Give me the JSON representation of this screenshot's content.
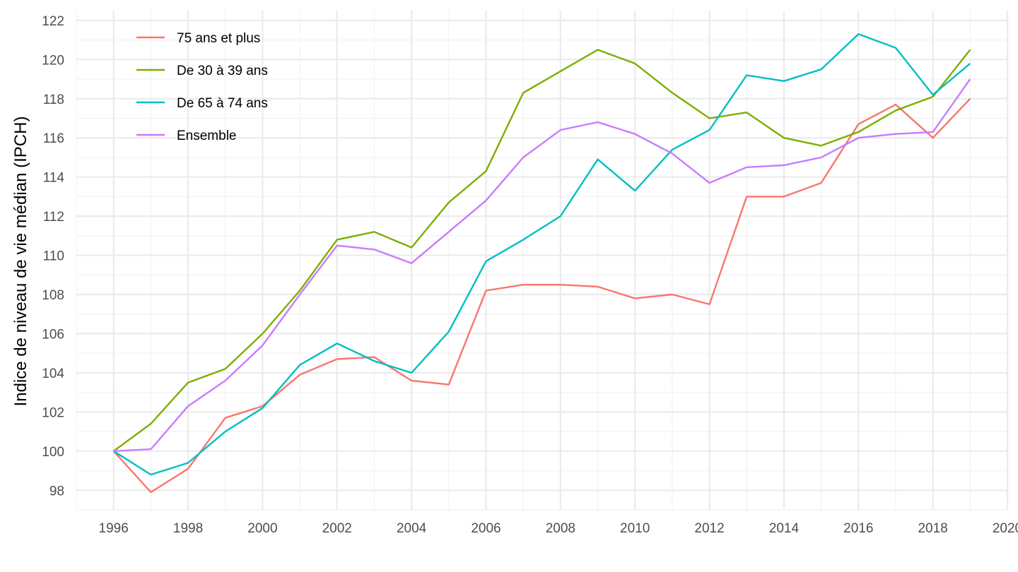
{
  "chart_data": {
    "type": "line",
    "title": "",
    "xlabel": "",
    "ylabel": "Indice de niveau de vie médian (IPCH)",
    "xlim": [
      1995,
      2020
    ],
    "ylim": [
      97,
      122.5
    ],
    "x_ticks": [
      "1996",
      "1998",
      "2000",
      "2002",
      "2004",
      "2006",
      "2008",
      "2010",
      "2012",
      "2014",
      "2016",
      "2018",
      "2020"
    ],
    "y_ticks": [
      "98",
      "100",
      "102",
      "104",
      "106",
      "108",
      "110",
      "112",
      "114",
      "116",
      "118",
      "120",
      "122"
    ],
    "grid": true,
    "legend_position": "top-left",
    "x": [
      1996,
      1997,
      1998,
      1999,
      2000,
      2001,
      2002,
      2003,
      2004,
      2005,
      2006,
      2007,
      2008,
      2009,
      2010,
      2011,
      2012,
      2013,
      2014,
      2015,
      2016,
      2017,
      2018,
      2019
    ],
    "series": [
      {
        "name": "75 ans et plus",
        "color": "#F8766D",
        "values": [
          100.0,
          97.9,
          99.1,
          101.7,
          102.3,
          103.9,
          104.7,
          104.8,
          103.6,
          103.4,
          108.2,
          108.5,
          108.5,
          108.4,
          107.8,
          108.0,
          107.5,
          113.0,
          113.0,
          113.7,
          116.7,
          117.7,
          116.0,
          118.0
        ]
      },
      {
        "name": "De 30 à 39 ans",
        "color": "#7CAE00",
        "values": [
          100.0,
          101.4,
          103.5,
          104.2,
          106.0,
          108.2,
          110.8,
          111.2,
          110.4,
          112.7,
          114.3,
          118.3,
          119.4,
          120.5,
          119.8,
          118.3,
          117.0,
          117.3,
          116.0,
          115.6,
          116.3,
          117.4,
          118.1,
          120.5
        ]
      },
      {
        "name": "De 65 à 74 ans",
        "color": "#00BFC4",
        "values": [
          100.0,
          98.8,
          99.4,
          101.0,
          102.2,
          104.4,
          105.5,
          104.6,
          104.0,
          106.1,
          109.7,
          110.8,
          112.0,
          114.9,
          113.3,
          115.4,
          116.4,
          119.2,
          118.9,
          119.5,
          121.3,
          120.6,
          118.2,
          119.8
        ]
      },
      {
        "name": "Ensemble",
        "color": "#C77CFF",
        "values": [
          100.0,
          100.1,
          102.3,
          103.6,
          105.4,
          108.0,
          110.5,
          110.3,
          109.6,
          111.2,
          112.8,
          115.0,
          116.4,
          116.8,
          116.2,
          115.2,
          113.7,
          114.5,
          114.6,
          115.0,
          116.0,
          116.2,
          116.3,
          119.0
        ]
      }
    ]
  }
}
